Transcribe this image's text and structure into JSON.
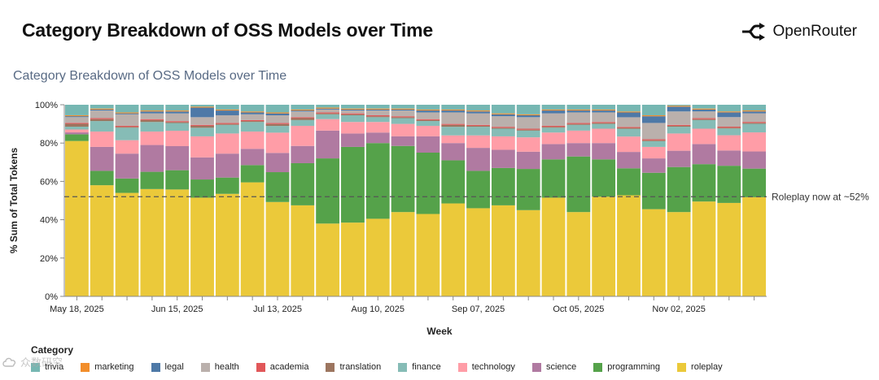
{
  "header": {
    "title": "Category Breakdown of OSS Models over Time",
    "brand": "OpenRouter"
  },
  "chart_data": {
    "type": "bar",
    "stacked": true,
    "title": "Category Breakdown of OSS Models over Time",
    "xlabel": "Week",
    "ylabel": "% Sum of Total Tokens",
    "ylim": [
      0,
      100
    ],
    "yticks": [
      "0%",
      "20%",
      "40%",
      "60%",
      "80%",
      "100%"
    ],
    "xtick_labels": [
      "May 18, 2025",
      "Jun 15, 2025",
      "Jul 13, 2025",
      "Aug 10, 2025",
      "Sep 07, 2025",
      "Oct 05, 2025",
      "Nov 02, 2025"
    ],
    "xtick_week_index": [
      0,
      4,
      8,
      12,
      16,
      20,
      24
    ],
    "legend_title": "Category",
    "legend_position": "bottom",
    "annotation": {
      "text": "Roleplay now at ~52%",
      "y": 52
    },
    "categories": [
      "2025-05-18",
      "2025-05-25",
      "2025-06-01",
      "2025-06-08",
      "2025-06-15",
      "2025-06-22",
      "2025-06-29",
      "2025-07-06",
      "2025-07-13",
      "2025-07-20",
      "2025-07-27",
      "2025-08-03",
      "2025-08-10",
      "2025-08-17",
      "2025-08-24",
      "2025-08-31",
      "2025-09-07",
      "2025-09-14",
      "2025-09-21",
      "2025-09-28",
      "2025-10-05",
      "2025-10-12",
      "2025-10-19",
      "2025-10-26",
      "2025-11-02",
      "2025-11-09",
      "2025-11-16",
      "2025-11-23"
    ],
    "series": [
      {
        "name": "roleplay",
        "color": "#ebc93a",
        "values": [
          81.5,
          58,
          54,
          56,
          55.5,
          51.5,
          53.5,
          59.5,
          49,
          47.5,
          38,
          38.5,
          40.5,
          44,
          43,
          48.5,
          46,
          47.5,
          45,
          51.5,
          44,
          52,
          52.5,
          45.5,
          44,
          49.5,
          49,
          52
        ]
      },
      {
        "name": "programming",
        "color": "#55a24a",
        "values": [
          3.5,
          7.5,
          7.5,
          9,
          10,
          9.5,
          8.5,
          9,
          15.5,
          22,
          34,
          39.5,
          39.5,
          34.5,
          32,
          22.5,
          19.5,
          19.5,
          21.5,
          20,
          29,
          19.5,
          14,
          19,
          23.5,
          19.5,
          19.5,
          15
        ]
      },
      {
        "name": "science",
        "color": "#b07aa1",
        "values": [
          1,
          12.5,
          13,
          14,
          12.5,
          11.5,
          12.5,
          8.5,
          10,
          9,
          14.5,
          7,
          5.5,
          5,
          8.5,
          9,
          12,
          9.5,
          9,
          8,
          7,
          8.5,
          8.5,
          7.5,
          8.5,
          10.5,
          8,
          9
        ]
      },
      {
        "name": "technology",
        "color": "#ff9da7",
        "values": [
          1.5,
          8,
          7,
          7,
          8,
          11,
          10.5,
          9,
          10.5,
          10.5,
          6,
          6,
          5.5,
          6.5,
          5.5,
          4,
          6.5,
          7,
          7.5,
          6,
          6.5,
          7.5,
          8,
          6,
          9,
          8,
          8,
          10
        ]
      },
      {
        "name": "finance",
        "color": "#86bcb6",
        "values": [
          1.5,
          5.5,
          6.5,
          5,
          4,
          4.5,
          4.5,
          5,
          3.5,
          3,
          2.5,
          3.5,
          2.5,
          3,
          2.5,
          4.5,
          4.5,
          4,
          3.5,
          2.5,
          3,
          2.5,
          4,
          3,
          3.5,
          4.5,
          3.5,
          4.5
        ]
      },
      {
        "name": "translation",
        "color": "#9c755f",
        "values": [
          1.5,
          1,
          0.5,
          1,
          0.5,
          1,
          0.5,
          0.5,
          1,
          1,
          0.5,
          0.5,
          0.5,
          0.5,
          0.5,
          1,
          0.5,
          0.5,
          0.5,
          0.5,
          0.5,
          0.5,
          0.5,
          0.5,
          0.5,
          0.5,
          0.5,
          0.5
        ]
      },
      {
        "name": "academia",
        "color": "#e15759",
        "values": [
          0.5,
          0.5,
          0.5,
          0.5,
          0.5,
          0.5,
          0.5,
          0.5,
          0.5,
          0.5,
          0.5,
          0.5,
          0.5,
          0.5,
          0.5,
          0.5,
          0.5,
          0.5,
          0.5,
          0.5,
          0.5,
          0.5,
          0.5,
          0.5,
          0.5,
          0.5,
          0.5,
          0.5
        ]
      },
      {
        "name": "health",
        "color": "#bab0ac",
        "values": [
          3,
          4,
          6,
          3,
          4,
          4,
          4,
          3,
          4,
          3,
          1.5,
          1.5,
          2.5,
          3,
          3.5,
          6,
          6,
          5.5,
          6,
          6.5,
          5.5,
          5,
          5,
          8.5,
          7,
          3.5,
          5,
          4.5
        ]
      },
      {
        "name": "legal",
        "color": "#4e79a7",
        "values": [
          0.5,
          0.5,
          0.5,
          1,
          1,
          5,
          2.5,
          1,
          1,
          0.5,
          0.5,
          0.5,
          0.5,
          0.5,
          1,
          1,
          1,
          1,
          1,
          1.5,
          1,
          1,
          2.5,
          3.5,
          2.5,
          1,
          2.5,
          1
        ]
      },
      {
        "name": "marketing",
        "color": "#f28e2b",
        "values": [
          0.5,
          0.5,
          0.5,
          0.5,
          0.5,
          0.5,
          0.5,
          0.5,
          0.5,
          0.5,
          0.5,
          0.5,
          0.5,
          0.5,
          0.5,
          0.5,
          0.5,
          0.5,
          0.5,
          0.5,
          0.5,
          0.5,
          0.5,
          0.5,
          0.5,
          0.5,
          0.5,
          0.5
        ]
      },
      {
        "name": "trivia",
        "color": "#76b7b2",
        "values": [
          5.5,
          2,
          4,
          3,
          3,
          1,
          2.5,
          3.5,
          4,
          2.5,
          1.5,
          2,
          2,
          2,
          2.5,
          2.5,
          3,
          4.5,
          5,
          2.5,
          2.5,
          2.5,
          3.5,
          5.5,
          0.5,
          2,
          3.5,
          3
        ]
      }
    ]
  },
  "legend": {
    "items": [
      {
        "name": "trivia",
        "color": "#76b7b2"
      },
      {
        "name": "marketing",
        "color": "#f28e2b"
      },
      {
        "name": "legal",
        "color": "#4e79a7"
      },
      {
        "name": "health",
        "color": "#bab0ac"
      },
      {
        "name": "academia",
        "color": "#e15759"
      },
      {
        "name": "translation",
        "color": "#9c755f"
      },
      {
        "name": "finance",
        "color": "#86bcb6"
      },
      {
        "name": "technology",
        "color": "#ff9da7"
      },
      {
        "name": "science",
        "color": "#b07aa1"
      },
      {
        "name": "programming",
        "color": "#55a24a"
      },
      {
        "name": "roleplay",
        "color": "#ebc93a"
      }
    ]
  },
  "watermark": {
    "text": "众数研究",
    "icon": "cloud-icon"
  }
}
